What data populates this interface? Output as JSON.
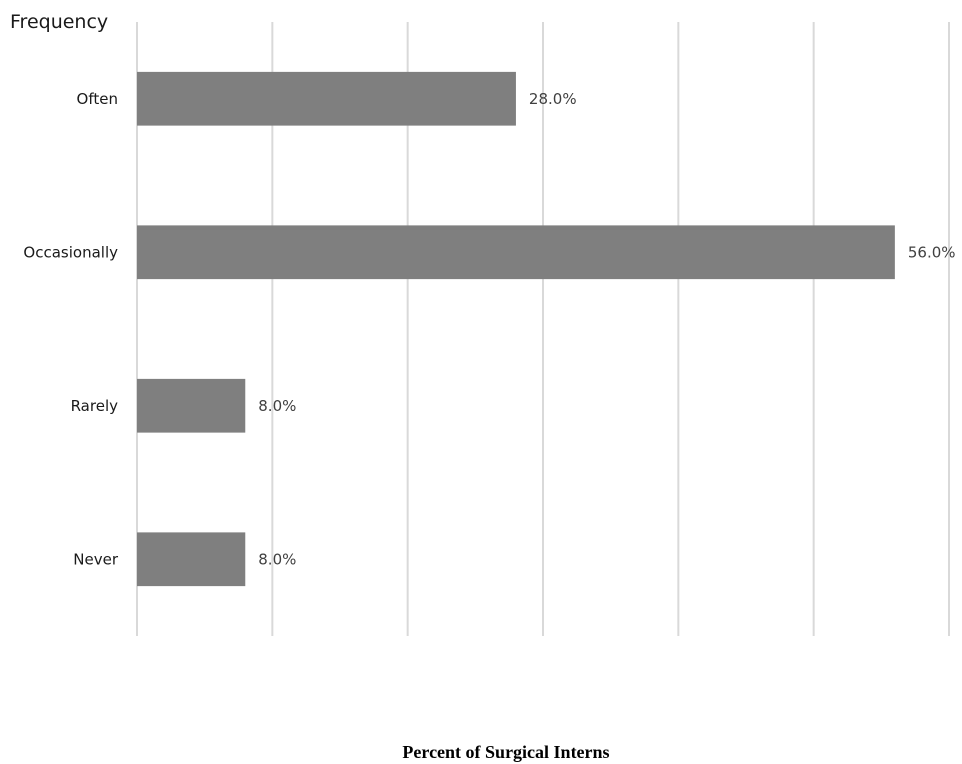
{
  "chart_data": {
    "type": "bar",
    "orientation": "horizontal",
    "categories": [
      "Often",
      "Occasionally",
      "Rarely",
      "Never"
    ],
    "values": [
      28.0,
      56.0,
      8.0,
      8.0
    ],
    "data_labels": [
      "28.0%",
      "56.0%",
      "8.0%",
      "8.0%"
    ],
    "ylabel": "Frequency",
    "xlabel": "Percent of Surgical Interns",
    "xlim": [
      0,
      60
    ],
    "grid_step": 10,
    "grid": true,
    "legend": "none",
    "bar_color": "#7f7f7f",
    "grid_color": "#d9d9d9"
  }
}
